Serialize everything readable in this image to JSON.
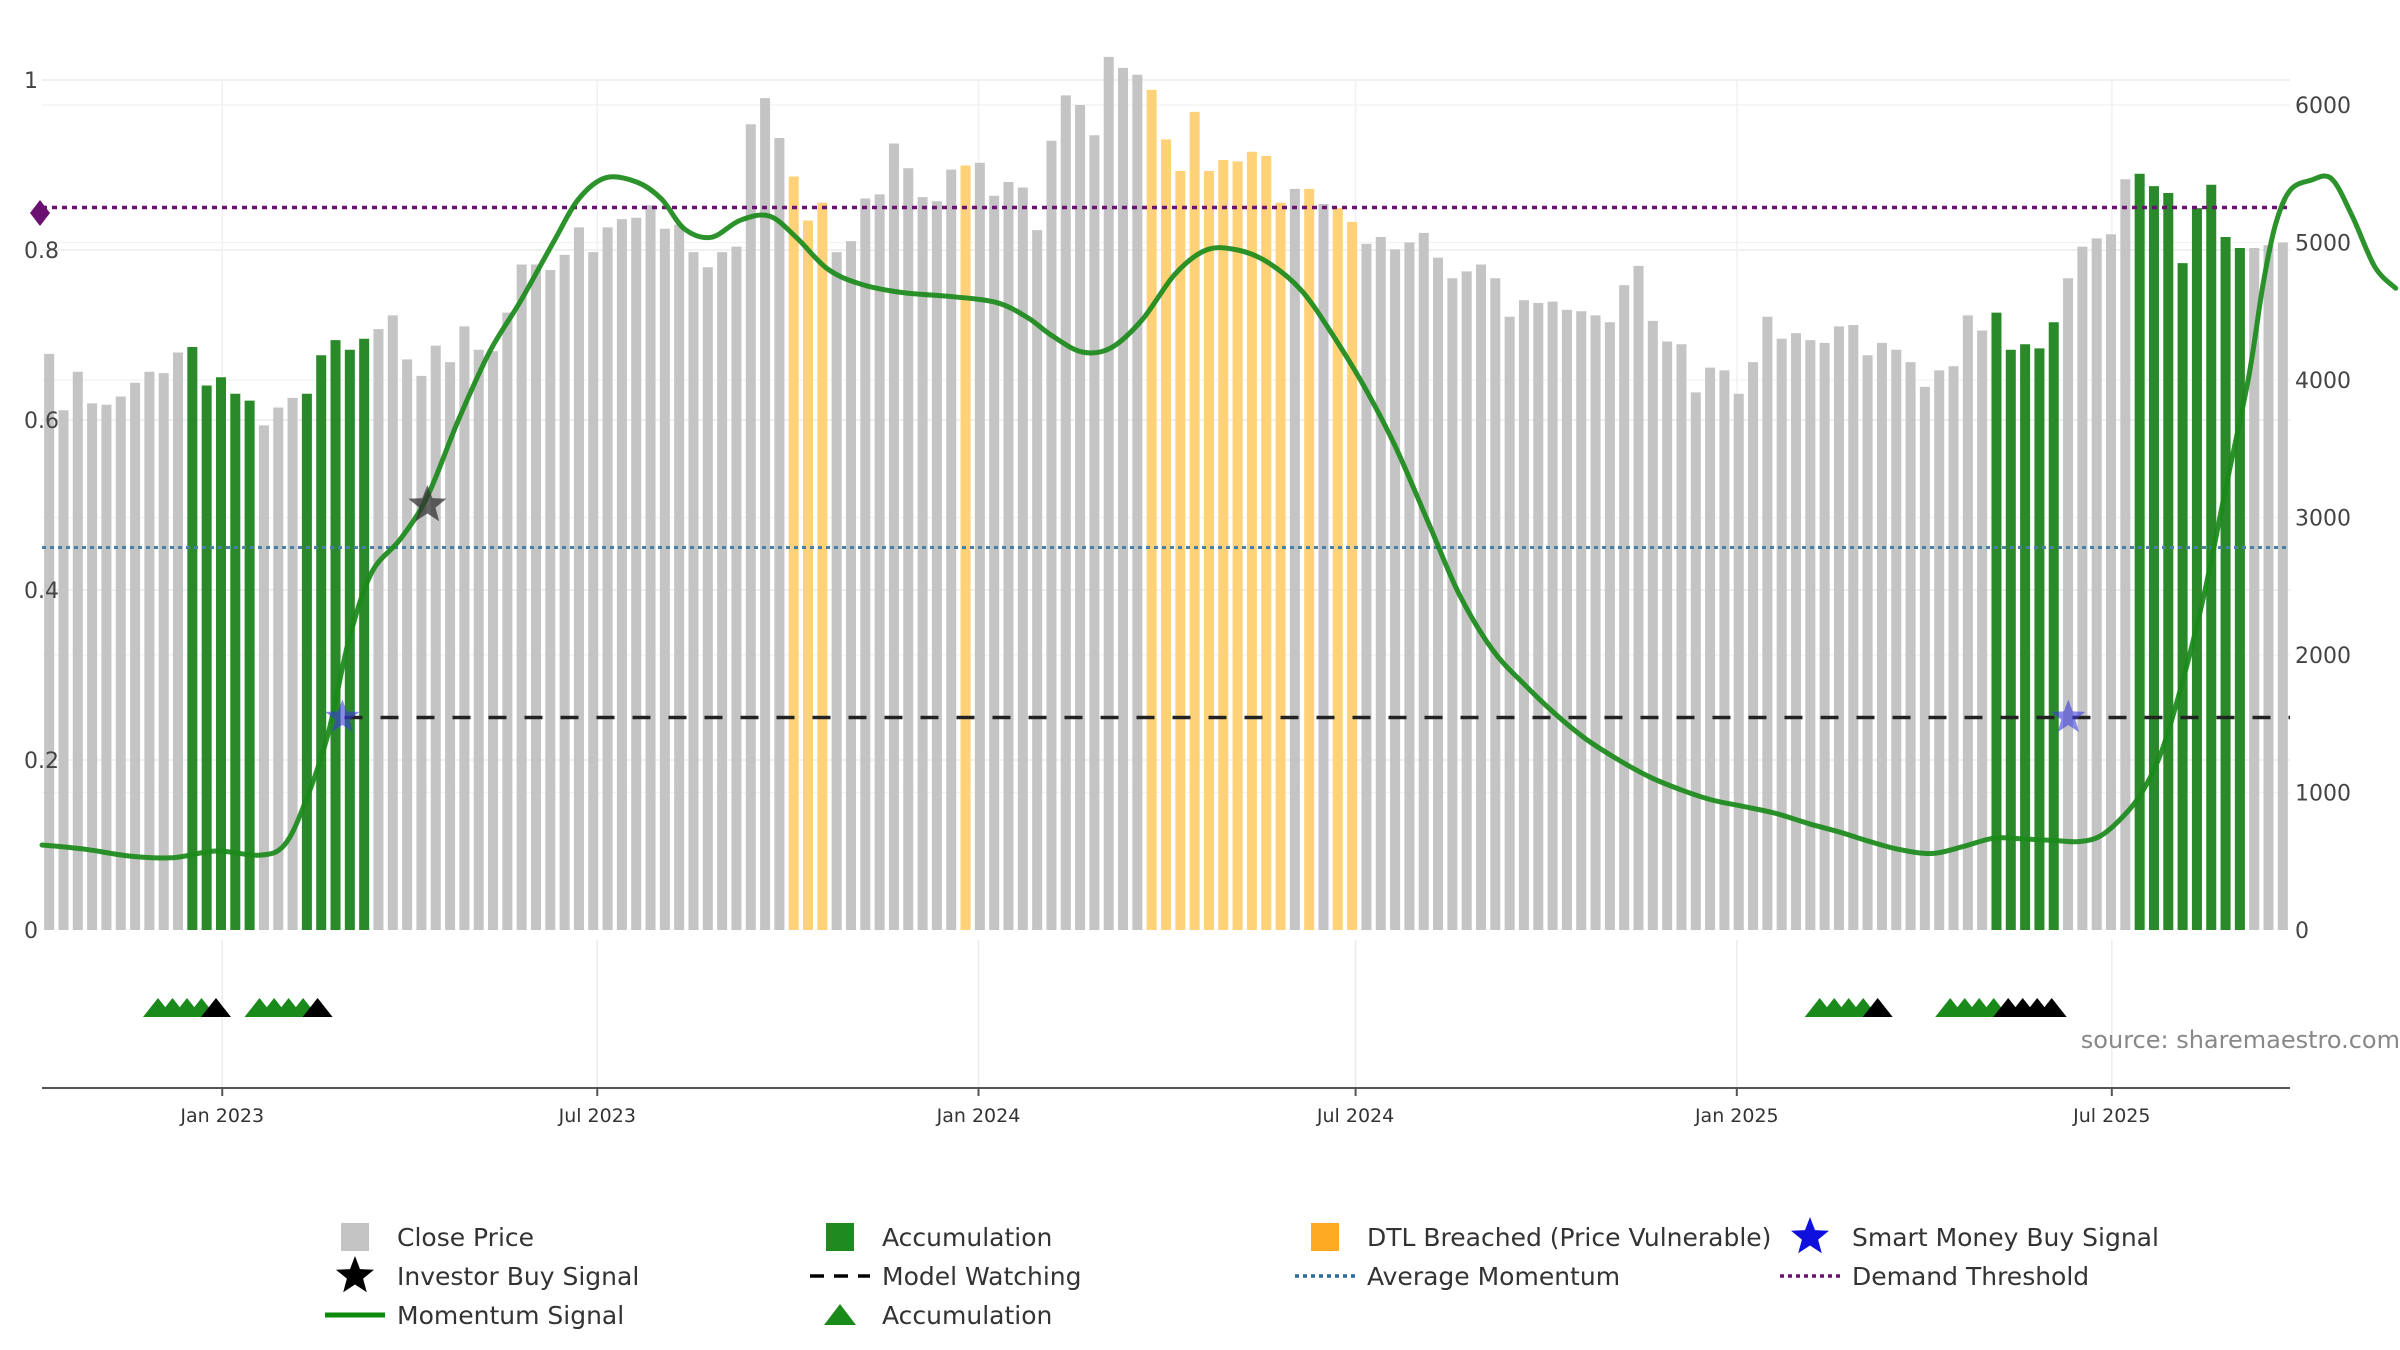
{
  "chart_data": {
    "type": "bar",
    "source": "source: sharemaestro.com",
    "left_axis": {
      "range": [
        0,
        1
      ],
      "ticks": [
        "0",
        "0.2",
        "0.4",
        "0.6",
        "0.8",
        "1"
      ]
    },
    "right_axis": {
      "range": [
        0,
        6700
      ],
      "ticks": [
        "0",
        "1000",
        "2000",
        "3000",
        "4000",
        "5000",
        "6000"
      ]
    },
    "x_axis": {
      "start": "2022-10-06",
      "end": "2025-09-25",
      "ticks": [
        {
          "date": "2023-01-01",
          "label": "Jan 2023"
        },
        {
          "date": "2023-07-01",
          "label": "Jul 2023"
        },
        {
          "date": "2024-01-01",
          "label": "Jan 2024"
        },
        {
          "date": "2024-07-01",
          "label": "Jul 2024"
        },
        {
          "date": "2025-01-01",
          "label": "Jan 2025"
        },
        {
          "date": "2025-07-01",
          "label": "Jul 2025"
        }
      ]
    },
    "close_price": [
      4190,
      3780,
      4060,
      3830,
      3820,
      3880,
      3980,
      4060,
      4050,
      4200,
      4240,
      3960,
      4020,
      3900,
      3850,
      3670,
      3800,
      3870,
      3900,
      4180,
      4290,
      4220,
      4300,
      4370,
      4470,
      4150,
      4030,
      4250,
      4130,
      4390,
      4220,
      4210,
      4490,
      4840,
      4840,
      4800,
      4910,
      5110,
      4930,
      5110,
      5170,
      5180,
      5270,
      5100,
      5130,
      4930,
      4820,
      4930,
      4970,
      5860,
      6050,
      5760,
      5480,
      5160,
      5290,
      4930,
      5010,
      5320,
      5350,
      5720,
      5540,
      5330,
      5300,
      5530,
      5560,
      5580,
      5340,
      5440,
      5400,
      5090,
      5740,
      6070,
      6000,
      5780,
      6350,
      6270,
      6220,
      6110,
      5750,
      5520,
      5950,
      5520,
      5600,
      5590,
      5660,
      5630,
      5290,
      5390,
      5390,
      5280,
      5250,
      5150,
      4990,
      5040,
      4950,
      5000,
      5070,
      4890,
      4740,
      4790,
      4840,
      4740,
      4460,
      4580,
      4560,
      4570,
      4510,
      4500,
      4470,
      4420,
      4690,
      4830,
      4430,
      4280,
      4260,
      3910,
      4090,
      4070,
      3900,
      4130,
      4460,
      4300,
      4340,
      4290,
      4270,
      4390,
      4400,
      4180,
      4270,
      4220,
      4130,
      3950,
      4070,
      4100,
      4470,
      4360,
      4490,
      4220,
      4260,
      4230,
      4420,
      4740,
      4970,
      5030,
      5060,
      5460,
      5500,
      5410,
      5360,
      4850,
      5250,
      5420,
      5040,
      4960,
      4960,
      4980,
      5000
    ],
    "bar_category": "ggggggggggaaaaagggaaaaagggggggggggggggggggggggggggggdddgggggggggdggggggggggggddddddddddgdgddggggggggggggggggggggggggggggggggggggggggggggaaaaagggggaaaaaaaaggggggggggggggggg",
    "momentum": [
      [
        "2022-10-06",
        0.1
      ],
      [
        "2022-10-27",
        0.095
      ],
      [
        "2022-11-17",
        0.087
      ],
      [
        "2022-12-08",
        0.085
      ],
      [
        "2022-12-29",
        0.093
      ],
      [
        "2023-01-19",
        0.088
      ],
      [
        "2023-01-31",
        0.1
      ],
      [
        "2023-02-10",
        0.15
      ],
      [
        "2023-02-21",
        0.23
      ],
      [
        "2023-03-03",
        0.34
      ],
      [
        "2023-03-14",
        0.42
      ],
      [
        "2023-03-28",
        0.46
      ],
      [
        "2023-04-10",
        0.51
      ],
      [
        "2023-04-25",
        0.6
      ],
      [
        "2023-05-10",
        0.68
      ],
      [
        "2023-05-25",
        0.74
      ],
      [
        "2023-06-10",
        0.81
      ],
      [
        "2023-06-22",
        0.86
      ],
      [
        "2023-07-05",
        0.885
      ],
      [
        "2023-07-20",
        0.88
      ],
      [
        "2023-08-01",
        0.86
      ],
      [
        "2023-08-12",
        0.825
      ],
      [
        "2023-08-25",
        0.815
      ],
      [
        "2023-09-08",
        0.835
      ],
      [
        "2023-09-22",
        0.84
      ],
      [
        "2023-10-05",
        0.815
      ],
      [
        "2023-10-20",
        0.778
      ],
      [
        "2023-11-05",
        0.76
      ],
      [
        "2023-11-25",
        0.75
      ],
      [
        "2023-12-20",
        0.745
      ],
      [
        "2024-01-10",
        0.738
      ],
      [
        "2024-01-25",
        0.72
      ],
      [
        "2024-02-05",
        0.7
      ],
      [
        "2024-02-20",
        0.68
      ],
      [
        "2024-03-05",
        0.685
      ],
      [
        "2024-03-20",
        0.718
      ],
      [
        "2024-04-05",
        0.772
      ],
      [
        "2024-04-20",
        0.8
      ],
      [
        "2024-05-05",
        0.8
      ],
      [
        "2024-05-20",
        0.785
      ],
      [
        "2024-06-05",
        0.752
      ],
      [
        "2024-06-20",
        0.7
      ],
      [
        "2024-07-05",
        0.64
      ],
      [
        "2024-07-20",
        0.57
      ],
      [
        "2024-08-05",
        0.48
      ],
      [
        "2024-08-20",
        0.395
      ],
      [
        "2024-09-05",
        0.33
      ],
      [
        "2024-09-20",
        0.29
      ],
      [
        "2024-10-05",
        0.255
      ],
      [
        "2024-10-20",
        0.225
      ],
      [
        "2024-11-05",
        0.2
      ],
      [
        "2024-11-20",
        0.18
      ],
      [
        "2024-12-05",
        0.165
      ],
      [
        "2024-12-20",
        0.153
      ],
      [
        "2025-01-05",
        0.145
      ],
      [
        "2025-01-20",
        0.137
      ],
      [
        "2025-02-05",
        0.125
      ],
      [
        "2025-02-20",
        0.115
      ],
      [
        "2025-03-05",
        0.105
      ],
      [
        "2025-03-20",
        0.095
      ],
      [
        "2025-04-05",
        0.09
      ],
      [
        "2025-04-20",
        0.098
      ],
      [
        "2025-05-05",
        0.108
      ],
      [
        "2025-05-20",
        0.107
      ],
      [
        "2025-06-05",
        0.105
      ],
      [
        "2025-06-15",
        0.104
      ],
      [
        "2025-06-25",
        0.11
      ],
      [
        "2025-07-05",
        0.13
      ],
      [
        "2025-07-15",
        0.16
      ],
      [
        "2025-07-25",
        0.21
      ],
      [
        "2025-08-05",
        0.3
      ],
      [
        "2025-08-15",
        0.4
      ],
      [
        "2025-08-25",
        0.52
      ],
      [
        "2025-09-05",
        0.65
      ],
      [
        "2025-09-12",
        0.76
      ],
      [
        "2025-09-18",
        0.83
      ],
      [
        "2025-09-25",
        0.87
      ],
      [
        "2025-10-05",
        0.882
      ],
      [
        "2025-10-15",
        0.884
      ],
      [
        "2025-10-25",
        0.84
      ],
      [
        "2025-11-05",
        0.78
      ],
      [
        "2025-11-15",
        0.755
      ]
    ],
    "average_momentum": 0.45,
    "demand_threshold": 0.85,
    "model_watching": {
      "level": 0.25,
      "start": "2023-03-01",
      "end": "2025-09-25"
    },
    "investor_buy_signals": [
      {
        "date": "2023-04-10",
        "value": 0.5
      }
    ],
    "smart_money_buy_signals": [
      {
        "date": "2023-02-28",
        "value": 0.25
      },
      {
        "date": "2025-06-10",
        "value": 0.25
      }
    ],
    "demand_marker": {
      "value": 0.85
    },
    "signal_triangles": [
      {
        "date": "2022-12-01",
        "color": "green"
      },
      {
        "date": "2022-12-08",
        "color": "green"
      },
      {
        "date": "2022-12-15",
        "color": "green"
      },
      {
        "date": "2022-12-22",
        "color": "green"
      },
      {
        "date": "2022-12-29",
        "color": "black"
      },
      {
        "date": "2023-01-19",
        "color": "green"
      },
      {
        "date": "2023-01-26",
        "color": "green"
      },
      {
        "date": "2023-02-02",
        "color": "green"
      },
      {
        "date": "2023-02-09",
        "color": "green"
      },
      {
        "date": "2023-02-16",
        "color": "black"
      },
      {
        "date": "2025-02-10",
        "color": "green"
      },
      {
        "date": "2025-02-17",
        "color": "green"
      },
      {
        "date": "2025-02-24",
        "color": "green"
      },
      {
        "date": "2025-03-03",
        "color": "green"
      },
      {
        "date": "2025-03-10",
        "color": "black"
      },
      {
        "date": "2025-04-14",
        "color": "green"
      },
      {
        "date": "2025-04-21",
        "color": "green"
      },
      {
        "date": "2025-04-28",
        "color": "green"
      },
      {
        "date": "2025-05-05",
        "color": "green"
      },
      {
        "date": "2025-05-12",
        "color": "black"
      },
      {
        "date": "2025-05-19",
        "color": "black"
      },
      {
        "date": "2025-05-26",
        "color": "black"
      },
      {
        "date": "2025-06-02",
        "color": "black"
      }
    ],
    "colors": {
      "close": "#c4c4c4",
      "accumulation": "#2a8a2a",
      "breached": "#ffd27a",
      "momentum": "#1a8a1a",
      "average": "#4a7fa8",
      "threshold": "#6a1070",
      "watching": "#222222",
      "smart_money": "#3a3adb",
      "investor": "#333333",
      "triangle_green": "#1a8a1a",
      "triangle_black": "#000000"
    },
    "legend": [
      {
        "key": "close",
        "label": "Close Price",
        "shape": "square",
        "color": "#c4c4c4"
      },
      {
        "key": "accumulation_bar",
        "label": "Accumulation",
        "shape": "square",
        "color": "#1f8a1f"
      },
      {
        "key": "breached",
        "label": "DTL Breached (Price Vulnerable)",
        "shape": "square",
        "color": "#ffaa22"
      },
      {
        "key": "smart_money",
        "label": "Smart Money Buy Signal",
        "shape": "star",
        "color": "#1010dd"
      },
      {
        "key": "investor",
        "label": "Investor Buy Signal",
        "shape": "star",
        "color": "#000000"
      },
      {
        "key": "watching",
        "label": "Model Watching",
        "shape": "dash",
        "color": "#000000"
      },
      {
        "key": "average",
        "label": "Average Momentum",
        "shape": "dot",
        "color": "#2a6aa0"
      },
      {
        "key": "threshold",
        "label": "Demand Threshold",
        "shape": "dot",
        "color": "#6a1070"
      },
      {
        "key": "momentum",
        "label": "Momentum Signal",
        "shape": "line",
        "color": "#0c8a0c"
      },
      {
        "key": "accumulation_tri",
        "label": "Accumulation",
        "shape": "triangle",
        "color": "#1a8a1a"
      }
    ]
  }
}
